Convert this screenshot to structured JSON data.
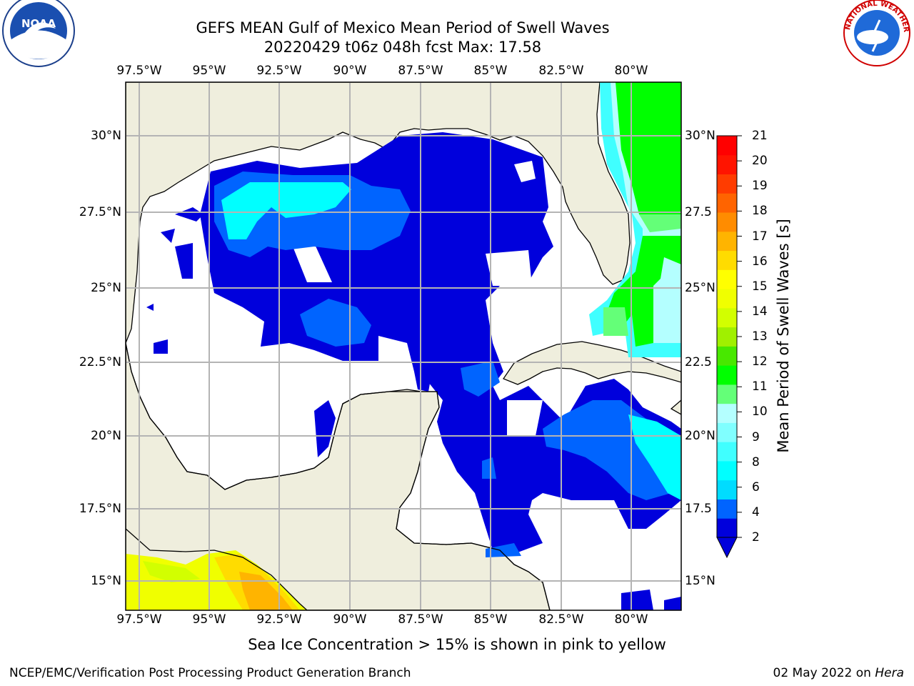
{
  "title": {
    "line1": "GEFS MEAN Gulf of Mexico Mean Period of Swell Waves",
    "line2": "20220429 t06z 048h fcst   Max: 17.58"
  },
  "axes": {
    "lon_labels": [
      "97.5°W",
      "95°W",
      "92.5°W",
      "90°W",
      "87.5°W",
      "85°W",
      "82.5°W",
      "80°W"
    ],
    "lat_labels_left": [
      "30°N",
      "27.5°N",
      "25°N",
      "22.5°N",
      "20°N",
      "17.5°N",
      "15°N"
    ],
    "lat_labels_right": [
      "30°N",
      "27.5",
      "25°N",
      "22.5",
      "20°N",
      "17.5",
      "15°N"
    ]
  },
  "colorbar": {
    "title": "Mean Period of Swell Waves [s]",
    "ticks": [
      "21",
      "20",
      "19",
      "18",
      "17",
      "16",
      "15",
      "14",
      "13",
      "12",
      "11",
      "10",
      "9",
      "8",
      "6",
      "4",
      "2"
    ],
    "colors": [
      "#0000dc",
      "#0064ff",
      "#00dcff",
      "#00ffff",
      "#40ffff",
      "#80ffff",
      "#b4ffff",
      "#64ff78",
      "#00ff00",
      "#48e800",
      "#a0f000",
      "#d2ff00",
      "#f0ff00",
      "#ffff00",
      "#ffdc00",
      "#ffb400",
      "#ff8c00",
      "#ff6400",
      "#ff3c00",
      "#ff1400",
      "#ff0000"
    ]
  },
  "footnote": "Sea Ice Concentration > 15% is shown in pink to yellow",
  "credits": {
    "left": "NCEP/EMC/Verification Post Processing Product Generation Branch",
    "date": "02 May 2022 on",
    "host": "Hera"
  },
  "logos": {
    "left": {
      "icon": "noaa-logo",
      "text": "NOAA"
    },
    "right": {
      "icon": "nws-logo",
      "text": "NATIONAL WEATHER SERVICE"
    }
  },
  "map": {
    "land_color": "#efeedd",
    "sea_blank_color": "#ffffff",
    "grid_color": "#b4b4b4"
  }
}
